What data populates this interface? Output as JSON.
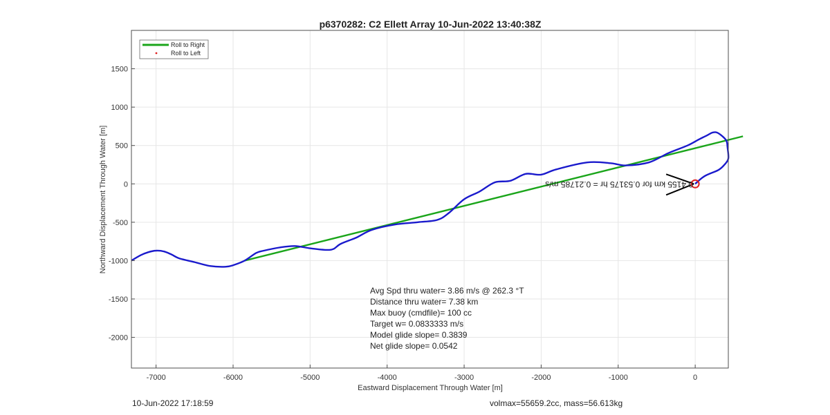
{
  "chart_data": {
    "type": "line",
    "title": "p6370282: C2 Ellett Array 10-Jun-2022 13:40:38Z",
    "xlabel": "Eastward Displacement Through Water [m]",
    "ylabel": "Northward Displacement Through Water [m]",
    "xlim": [
      -7320,
      430
    ],
    "ylim": [
      -2400,
      2000
    ],
    "xticks": [
      -7000,
      -6000,
      -5000,
      -4000,
      -3000,
      -2000,
      -1000,
      0
    ],
    "yticks": [
      1500,
      1000,
      500,
      0,
      -500,
      -1000,
      -1500,
      -2000
    ],
    "grid": true,
    "legend_position": "top-left",
    "legend": [
      {
        "label": "Roll to Right",
        "color": "#1aa51a",
        "style": "line"
      },
      {
        "label": "Roll to Left",
        "color": "#e02020",
        "style": "dot"
      }
    ],
    "series": [
      {
        "name": "Roll to Right",
        "color": "#1aa51a",
        "x": [
          -5850,
          620
        ],
        "y": [
          -1000,
          620
        ]
      },
      {
        "color": "#1a1acc",
        "x": [
          0,
          120,
          300,
          380,
          430,
          420,
          400,
          300,
          230,
          150,
          50,
          -100,
          -350,
          -600,
          -900,
          -1100,
          -1400,
          -1800,
          -2000,
          -2200,
          -2400,
          -2600,
          -2800,
          -3000,
          -3200,
          -3350,
          -3600,
          -3900,
          -4200,
          -4400,
          -4600,
          -4700,
          -4800,
          -5000,
          -5200,
          -5400,
          -5600,
          -5700,
          -5850,
          -6000,
          -6100,
          -6300,
          -6500,
          -6700,
          -6800,
          -6900,
          -7000,
          -7100,
          -7200,
          -7320
        ],
        "y": [
          0,
          100,
          180,
          250,
          330,
          470,
          570,
          660,
          670,
          630,
          580,
          500,
          400,
          280,
          240,
          270,
          280,
          190,
          120,
          130,
          40,
          20,
          -100,
          -200,
          -380,
          -470,
          -500,
          -530,
          -600,
          -700,
          -780,
          -850,
          -860,
          -840,
          -810,
          -830,
          -870,
          -900,
          -1000,
          -1060,
          -1080,
          -1070,
          -1020,
          -970,
          -920,
          -880,
          -870,
          -890,
          -930,
          -1000
        ]
      }
    ],
    "marker": {
      "x": 0,
      "y": 0,
      "color": "#e02020"
    },
    "plot_annotation": "0.4155 km for 0.53175 hr = 0.21785 m/s"
  },
  "stats": [
    "Avg Spd thru water=  3.86 m/s @ 262.3 °T",
    "Distance thru water=  7.38 km",
    "Max buoy (cmdfile)= 100 cc",
    "Target w= 0.0833333 m/s",
    "Model glide slope= 0.3839",
    "Net glide slope= 0.0542"
  ],
  "footer": {
    "left": "10-Jun-2022 17:18:59",
    "right": "volmax=55659.2cc, mass=56.613kg"
  },
  "colors": {
    "grid": "#e6e6e6",
    "axis": "#4d4d4d",
    "track": "#1a1acc",
    "fit": "#1aa51a",
    "marker": "#e02020"
  }
}
